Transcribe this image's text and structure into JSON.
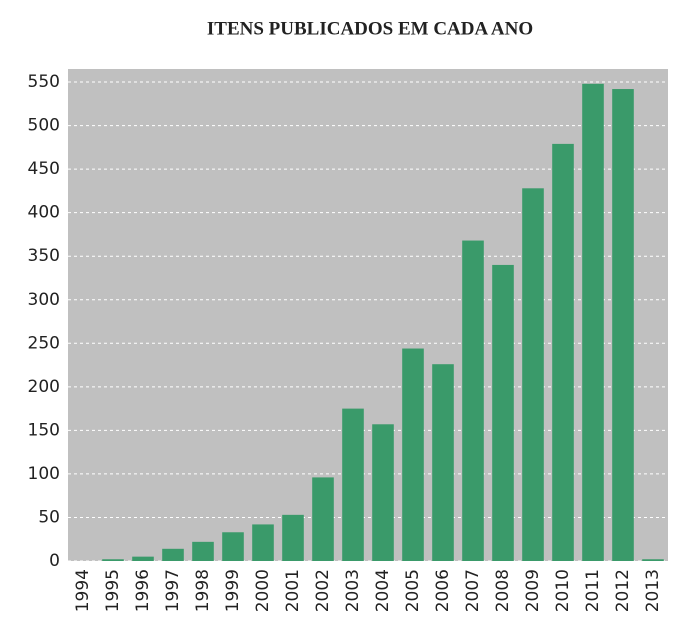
{
  "chart_data": {
    "type": "bar",
    "title": "ITENS PUBLICADOS EM CADA ANO",
    "categories": [
      "1994",
      "1995",
      "1996",
      "1997",
      "1998",
      "1999",
      "2000",
      "2001",
      "2002",
      "2003",
      "2004",
      "2005",
      "2006",
      "2007",
      "2008",
      "2009",
      "2010",
      "2011",
      "2012",
      "2013"
    ],
    "values": [
      0,
      2,
      5,
      14,
      22,
      33,
      42,
      53,
      96,
      175,
      157,
      244,
      226,
      368,
      340,
      428,
      479,
      548,
      542,
      2
    ],
    "color": "#3a9a6a",
    "ylim": [
      0,
      565
    ],
    "yticks": [
      0,
      50,
      100,
      150,
      200,
      250,
      300,
      350,
      400,
      450,
      500,
      550
    ],
    "grid": true
  }
}
